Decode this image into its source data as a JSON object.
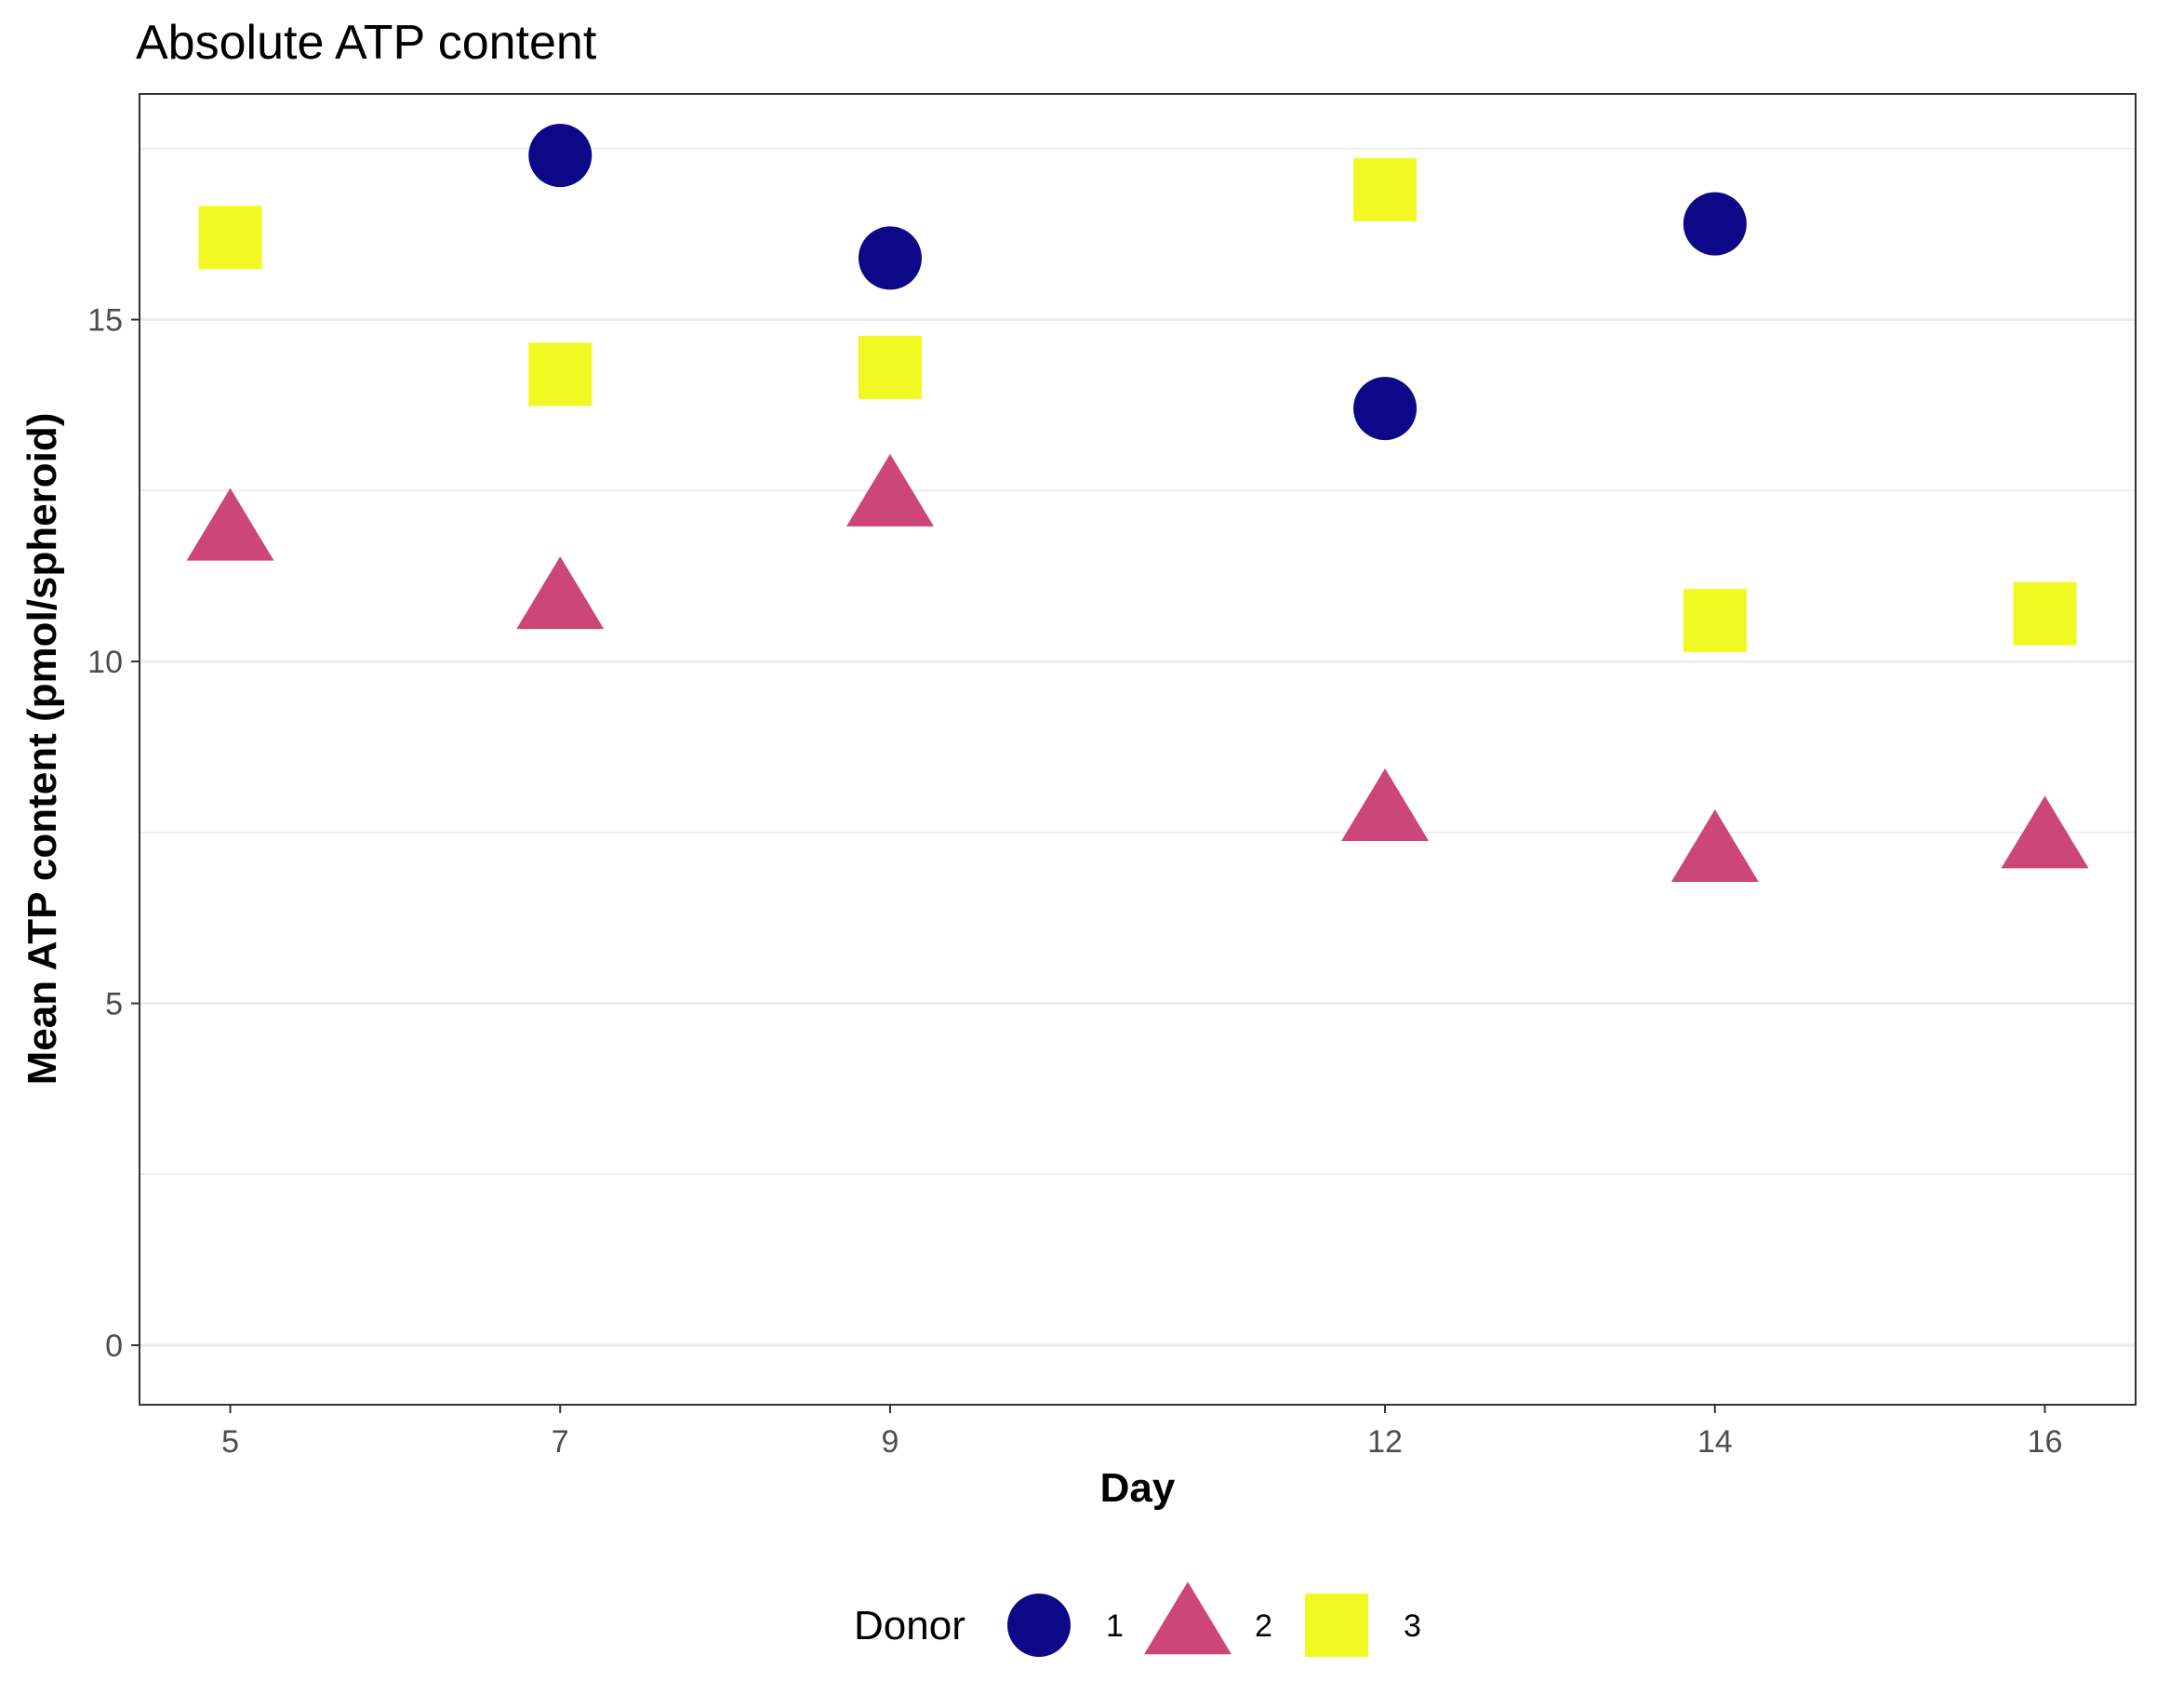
{
  "chart_data": {
    "type": "scatter",
    "title": "Absolute ATP content",
    "xlabel": "Day",
    "ylabel": "Mean ATP content (pmol/spheroid)",
    "x_ticks": [
      5,
      7,
      9,
      12,
      14,
      16
    ],
    "y_ticks": [
      0,
      5,
      10,
      15
    ],
    "xlim": [
      4.45,
      16.55
    ],
    "ylim": [
      -0.87,
      18.3
    ],
    "grid": true,
    "legend": {
      "title": "Donor",
      "placement": "bottom"
    },
    "series": [
      {
        "name": "1",
        "shape": "circle",
        "color": "#0d0887",
        "points": [
          {
            "x": 7,
            "y": 17.4
          },
          {
            "x": 9,
            "y": 15.9
          },
          {
            "x": 12,
            "y": 13.7
          },
          {
            "x": 14,
            "y": 16.4
          }
        ]
      },
      {
        "name": "2",
        "shape": "triangle",
        "color": "#cc4778",
        "points": [
          {
            "x": 5,
            "y": 11.9
          },
          {
            "x": 7,
            "y": 10.9
          },
          {
            "x": 9,
            "y": 12.4
          },
          {
            "x": 12,
            "y": 7.8
          },
          {
            "x": 14,
            "y": 7.2
          },
          {
            "x": 16,
            "y": 7.4
          }
        ]
      },
      {
        "name": "3",
        "shape": "square",
        "color": "#f0f921",
        "points": [
          {
            "x": 5,
            "y": 16.2
          },
          {
            "x": 7,
            "y": 14.2
          },
          {
            "x": 9,
            "y": 14.3
          },
          {
            "x": 12,
            "y": 16.9
          },
          {
            "x": 14,
            "y": 10.6
          },
          {
            "x": 16,
            "y": 10.7
          }
        ]
      }
    ]
  }
}
